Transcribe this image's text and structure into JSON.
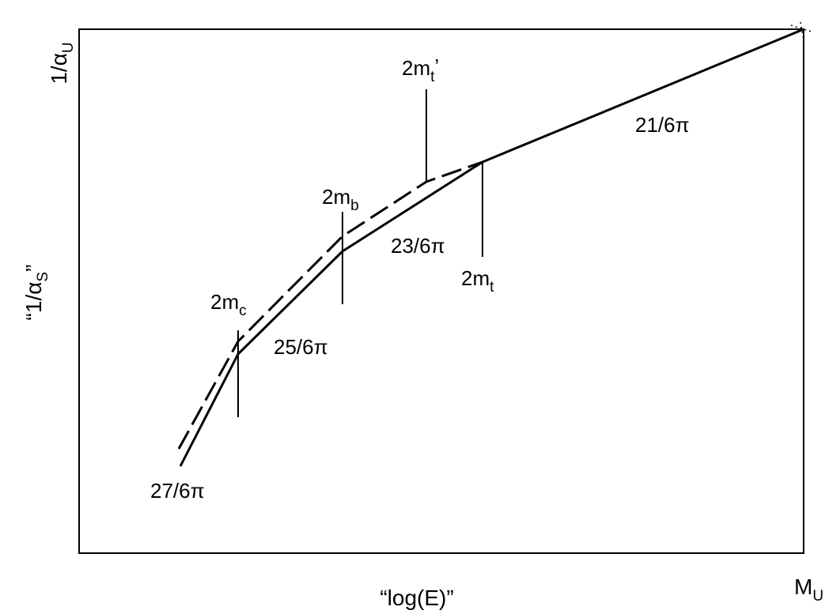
{
  "axes": {
    "y_label": "“1/α",
    "y_label_sub": "S",
    "y_label_end": "”",
    "y_top_label": "1/α",
    "y_top_label_sub": "U",
    "x_label": "“log(E)”",
    "x_end_label": "M",
    "x_end_label_sub": "U"
  },
  "thresholds": {
    "charm": {
      "base": "2m",
      "sub": "c"
    },
    "bottom": {
      "base": "2m",
      "sub": "b"
    },
    "top": {
      "base": "2m",
      "sub": "t"
    },
    "top_prime": {
      "base": "2m",
      "sub": "t",
      "prime": "’"
    }
  },
  "slopes": {
    "s27": "27/6π",
    "s25": "25/6π",
    "s23": "23/6π",
    "s21": "21/6π"
  }
}
